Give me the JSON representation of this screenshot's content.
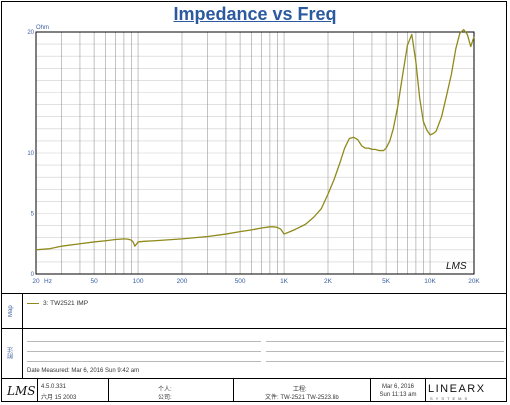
{
  "title": "Impedance vs Freq",
  "chart_data": {
    "type": "line",
    "title": "Impedance vs Freq",
    "ylabel": "Ohm",
    "xlabel": "Hz",
    "x_scale": "log",
    "xlim": [
      20,
      20000
    ],
    "ylim": [
      0,
      20
    ],
    "grid": true,
    "y_ticks": [
      {
        "value": 0,
        "label": "0"
      },
      {
        "value": 5,
        "label": "5"
      },
      {
        "value": 10,
        "label": "10"
      },
      {
        "value": 20,
        "label": "20"
      }
    ],
    "x_ticks": [
      {
        "value": 20,
        "label": "20"
      },
      {
        "value": 50,
        "label": "50"
      },
      {
        "value": 100,
        "label": "100"
      },
      {
        "value": 200,
        "label": "200"
      },
      {
        "value": 500,
        "label": "500"
      },
      {
        "value": 1000,
        "label": "1K"
      },
      {
        "value": 2000,
        "label": "2K"
      },
      {
        "value": 5000,
        "label": "5K"
      },
      {
        "value": 10000,
        "label": "10K"
      },
      {
        "value": 20000,
        "label": "20K"
      }
    ],
    "series": [
      {
        "name": "3: TW2521  IMP",
        "color": "#8f8a1a",
        "x": [
          20,
          25,
          30,
          40,
          50,
          60,
          70,
          80,
          85,
          90,
          93,
          95,
          98,
          100,
          110,
          130,
          150,
          200,
          300,
          400,
          500,
          600,
          700,
          800,
          850,
          900,
          950,
          1000,
          1100,
          1200,
          1400,
          1600,
          1800,
          2000,
          2200,
          2400,
          2600,
          2800,
          3000,
          3200,
          3400,
          3600,
          3800,
          4000,
          4200,
          4500,
          4800,
          5000,
          5300,
          5600,
          6000,
          6500,
          7000,
          7500,
          8000,
          8500,
          9000,
          9500,
          10000,
          10500,
          11000,
          12000,
          13000,
          14000,
          15000,
          16000,
          17000,
          18000,
          19000,
          20000
        ],
        "y": [
          2.0,
          2.1,
          2.3,
          2.5,
          2.65,
          2.75,
          2.85,
          2.9,
          2.88,
          2.8,
          2.6,
          2.3,
          2.5,
          2.65,
          2.7,
          2.75,
          2.8,
          2.9,
          3.1,
          3.3,
          3.5,
          3.65,
          3.8,
          3.9,
          3.9,
          3.85,
          3.7,
          3.3,
          3.5,
          3.7,
          4.1,
          4.7,
          5.4,
          6.6,
          7.8,
          9.1,
          10.4,
          11.2,
          11.3,
          11.1,
          10.6,
          10.4,
          10.4,
          10.3,
          10.3,
          10.2,
          10.2,
          10.4,
          11.0,
          12.0,
          13.8,
          16.5,
          18.9,
          19.8,
          17.5,
          14.5,
          12.6,
          11.9,
          11.5,
          11.6,
          11.8,
          13.0,
          14.8,
          16.5,
          18.6,
          19.9,
          20.2,
          19.8,
          18.8,
          19.6
        ]
      }
    ],
    "annotation": "LMS"
  },
  "legend": {
    "items": [
      "3: TW2521  IMP"
    ]
  },
  "side_labels": {
    "map": "Map",
    "notes": "附注"
  },
  "notes": {
    "date_measured": "Date Measured: Mar  6, 2016  Sun  9:42 am"
  },
  "footer": {
    "logo": "LMS",
    "version": "4.5.0.331",
    "version_date": "六月 15 2003",
    "person_label": "个人:",
    "company_label": "公司:",
    "project_label": "工程:",
    "file_line": "文件: TW-2521  TW-2523.lib",
    "date": "Mar  6, 2016",
    "time": "Sun 11:13 am",
    "brand": "LINEARX",
    "brand_sub": "SYSTEMS"
  }
}
